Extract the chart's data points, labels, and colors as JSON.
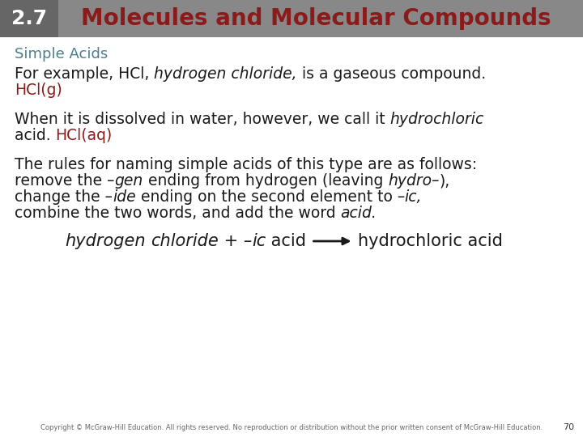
{
  "bg_color": "#ffffff",
  "header_bg": "#888888",
  "header_num_bg": "#666666",
  "header_number": "2.7",
  "header_number_color": "#ffffff",
  "header_title": "Molecules and Molecular Compounds",
  "header_title_color": "#8b1a1a",
  "section_title": "Simple Acids",
  "section_title_color": "#4a7e8c",
  "dark_red": "#8b1a1a",
  "black": "#1a1a1a",
  "footer_text": "Copyright © McGraw-Hill Education. All rights reserved. No reproduction or distribution without the prior written consent of McGraw-Hill Education.",
  "footer_page": "70",
  "font_size_header_num": 18,
  "font_size_header_title": 20,
  "font_size_section": 13,
  "font_size_body": 13.5,
  "font_size_formula": 15,
  "font_size_footer": 6.0
}
